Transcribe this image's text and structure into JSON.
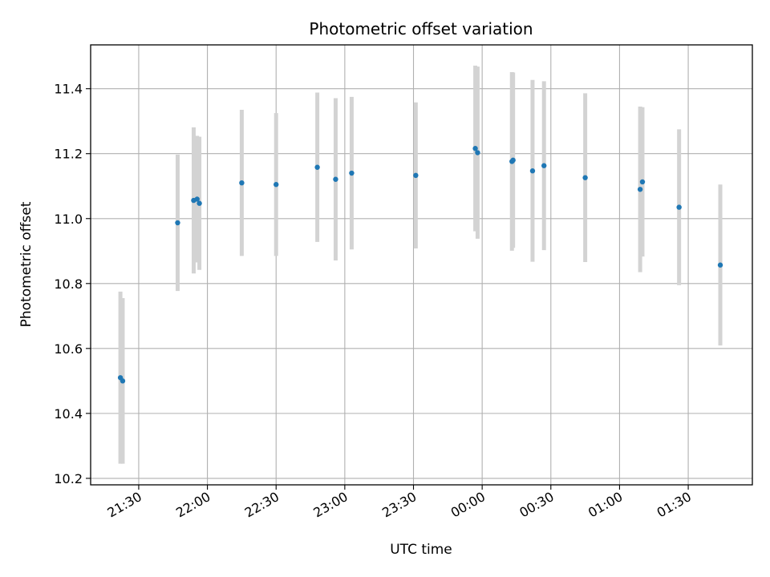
{
  "chart_data": {
    "type": "scatter",
    "title": "Photometric offset variation",
    "xlabel": "UTC time",
    "ylabel": "Photometric offset",
    "x_ticks": [
      "21:30",
      "22:00",
      "22:30",
      "23:00",
      "23:30",
      "00:00",
      "00:30",
      "01:00",
      "01:30"
    ],
    "y_ticks": [
      "10.2",
      "10.4",
      "10.6",
      "10.8",
      "11.0",
      "11.2",
      "11.4"
    ],
    "x_start": "21:09",
    "x_end": "01:58",
    "ylim": [
      10.18,
      11.535
    ],
    "grid": true,
    "colors": {
      "point": "#1f77b4",
      "errorbar": "#d3d3d3",
      "grid": "#b0b0b0"
    },
    "points": [
      {
        "t": "21:22",
        "y": 10.51,
        "err": 0.265
      },
      {
        "t": "21:23",
        "y": 10.5,
        "err": 0.255
      },
      {
        "t": "21:47",
        "y": 10.987,
        "err": 0.21
      },
      {
        "t": "21:54",
        "y": 11.056,
        "err": 0.225
      },
      {
        "t": "21:55.5",
        "y": 11.06,
        "err": 0.195
      },
      {
        "t": "21:56.5",
        "y": 11.047,
        "err": 0.205
      },
      {
        "t": "22:15",
        "y": 11.11,
        "err": 0.225
      },
      {
        "t": "22:30",
        "y": 11.105,
        "err": 0.22
      },
      {
        "t": "22:48",
        "y": 11.158,
        "err": 0.23
      },
      {
        "t": "22:56",
        "y": 11.121,
        "err": 0.25
      },
      {
        "t": "23:03",
        "y": 11.14,
        "err": 0.235
      },
      {
        "t": "23:31",
        "y": 11.133,
        "err": 0.225
      },
      {
        "t": "23:57",
        "y": 11.216,
        "err": 0.255
      },
      {
        "t": "23:58",
        "y": 11.203,
        "err": 0.265
      },
      {
        "t": "00:13",
        "y": 11.176,
        "err": 0.275
      },
      {
        "t": "00:13.5",
        "y": 11.18,
        "err": 0.27
      },
      {
        "t": "00:22",
        "y": 11.147,
        "err": 0.28
      },
      {
        "t": "00:27",
        "y": 11.163,
        "err": 0.26
      },
      {
        "t": "00:45",
        "y": 11.126,
        "err": 0.26
      },
      {
        "t": "01:09",
        "y": 11.09,
        "err": 0.255
      },
      {
        "t": "01:10",
        "y": 11.113,
        "err": 0.23
      },
      {
        "t": "01:26",
        "y": 11.035,
        "err": 0.24
      },
      {
        "t": "01:44",
        "y": 10.857,
        "err": 0.248
      }
    ]
  }
}
